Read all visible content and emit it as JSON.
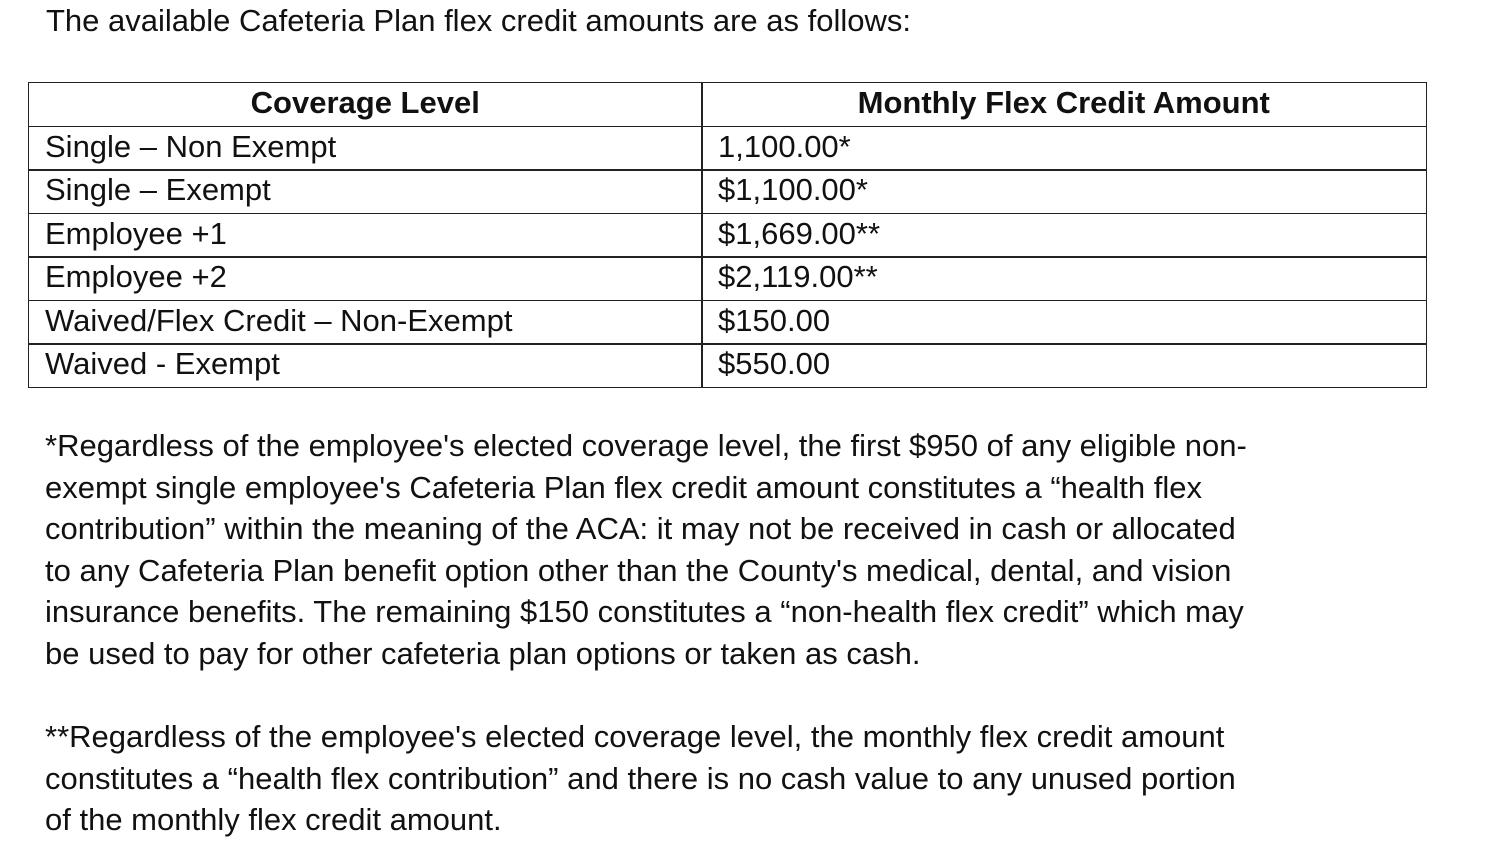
{
  "intro": "The available Cafeteria Plan flex credit amounts are as follows:",
  "table": {
    "header": [
      "Coverage Level",
      "Monthly Flex Credit Amount"
    ],
    "rows": [
      [
        "Single – Non Exempt",
        "1,100.00*"
      ],
      [
        "Single – Exempt",
        "$1,100.00*"
      ],
      [
        "Employee +1",
        "$1,669.00**"
      ],
      [
        "Employee +2",
        "$2,119.00**"
      ],
      [
        "Waived/Flex Credit – Non-Exempt",
        "$150.00"
      ],
      [
        "Waived - Exempt",
        "$550.00"
      ]
    ]
  },
  "footnotes": [
    [
      "*Regardless of the employee's elected coverage level, the first $950 of any eligible non-",
      "exempt single employee's Cafeteria Plan flex credit amount constitutes a “health flex",
      "contribution” within the meaning of the ACA: it may not be received in cash or allocated",
      "to any Cafeteria Plan benefit option other than the County's medical, dental, and vision",
      "insurance benefits. The remaining $150 constitutes a “non-health flex credit” which may",
      "be used to pay for other cafeteria plan options or taken as cash."
    ],
    [
      "**Regardless of the employee's elected coverage level, the monthly flex credit amount",
      "constitutes a “health flex contribution” and there is no cash value to any unused portion",
      "of the monthly flex credit amount."
    ]
  ]
}
